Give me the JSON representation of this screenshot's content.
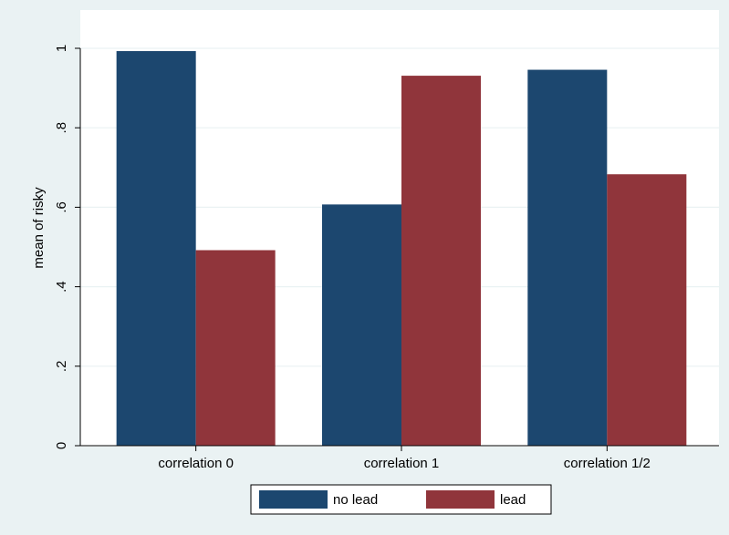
{
  "chart_data": {
    "type": "bar",
    "title": "",
    "xlabel": "",
    "ylabel": "mean of risky",
    "categories": [
      "correlation 0",
      "correlation 1",
      "correlation 1/2"
    ],
    "series": [
      {
        "name": "no lead",
        "values": [
          0.993,
          0.607,
          0.946
        ],
        "color": "#1c476f"
      },
      {
        "name": "lead",
        "values": [
          0.492,
          0.931,
          0.683
        ],
        "color": "#90353b"
      }
    ],
    "ylim": [
      0,
      1
    ],
    "yticks": [
      {
        "value": 0,
        "label": "0"
      },
      {
        "value": 0.2,
        "label": ".2"
      },
      {
        "value": 0.4,
        "label": ".4"
      },
      {
        "value": 0.6,
        "label": ".6"
      },
      {
        "value": 0.8,
        "label": ".8"
      },
      {
        "value": 1,
        "label": "1"
      }
    ],
    "grid": true,
    "legend_position": "bottom"
  },
  "colors": {
    "outer_background": "#eaf2f3",
    "plot_background": "#ffffff",
    "grid": "#eaf2f3"
  }
}
